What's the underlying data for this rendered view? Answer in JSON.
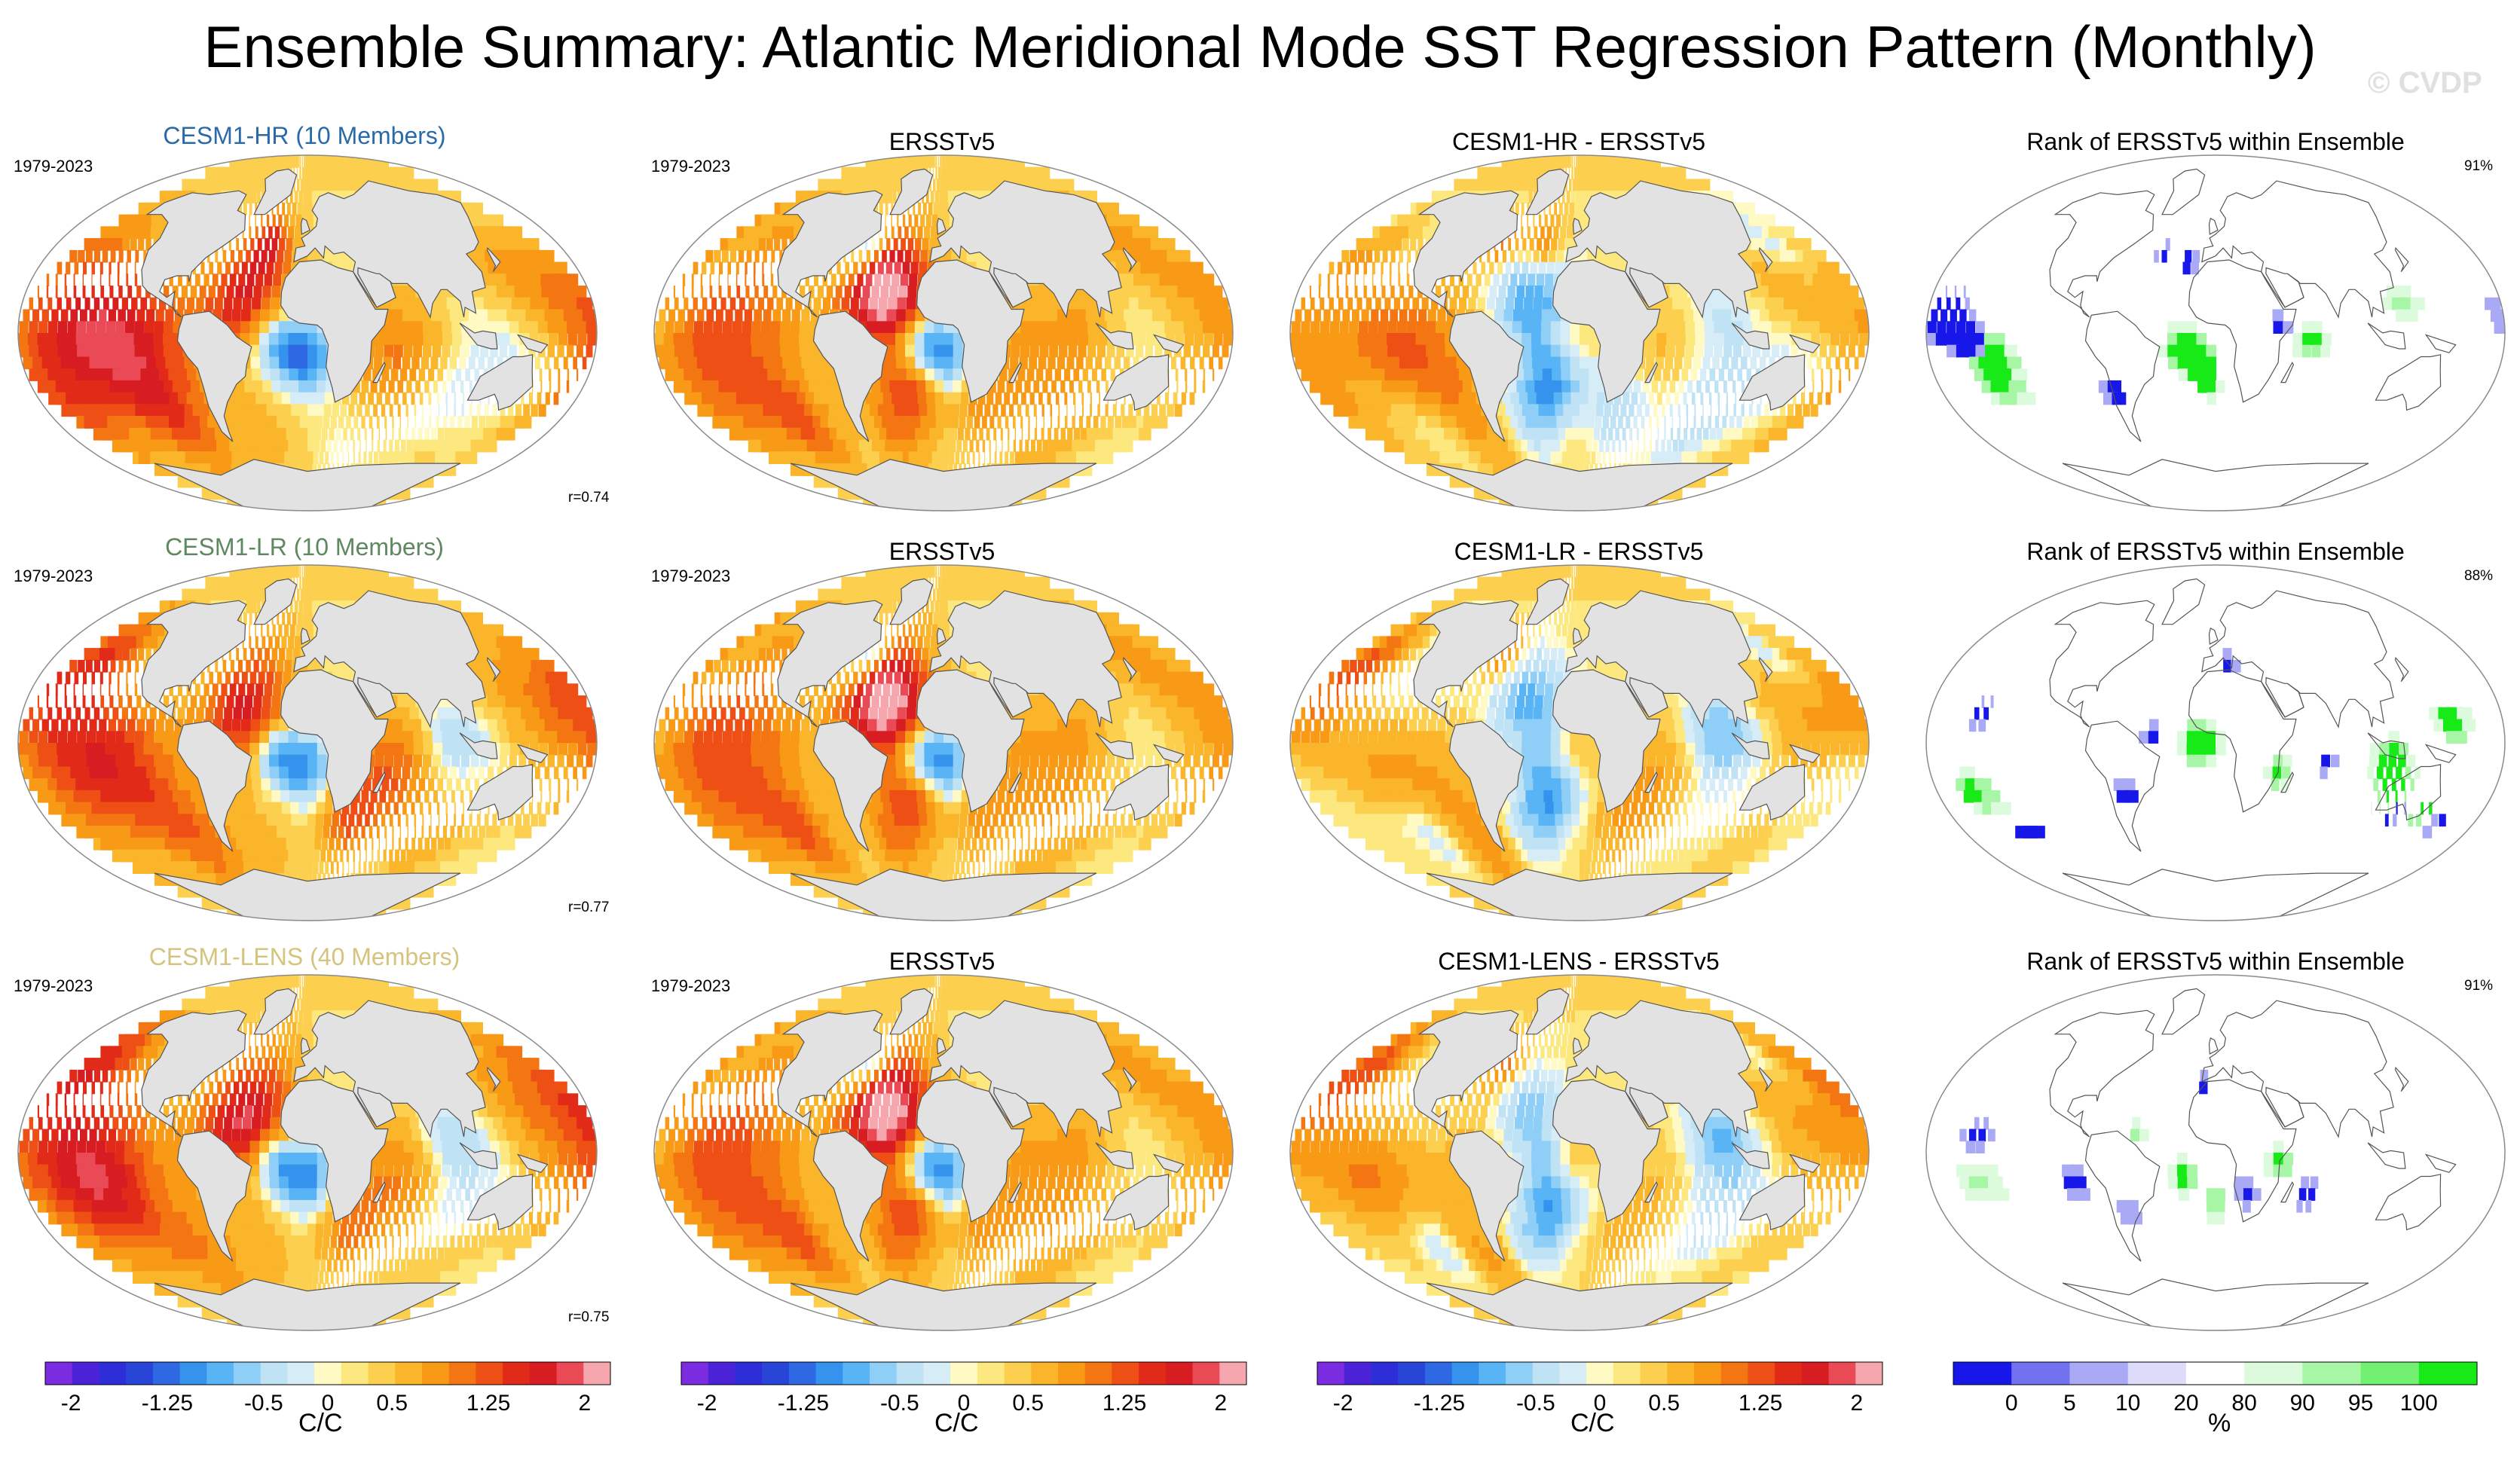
{
  "title": "Ensemble Summary: Atlantic Meridional Mode SST Regression Pattern (Monthly)",
  "watermark": "© CVDP",
  "colors": {
    "land": "#e2e2e2",
    "coast": "#555555",
    "sst_palette": [
      "#7b2be0",
      "#4b22d6",
      "#2e2ed8",
      "#2945d8",
      "#2e69e3",
      "#3593ee",
      "#58b4f5",
      "#8fcff7",
      "#c0e2f5",
      "#d6ecf6",
      "#fff9c4",
      "#fde880",
      "#fccf4e",
      "#fbb52a",
      "#f99a17",
      "#f37612",
      "#ee4f14",
      "#e22a18",
      "#d81d22",
      "#ea4a55",
      "#f6a7ae"
    ],
    "rank_palette": [
      "#1717ea",
      "#7272f0",
      "#a9a9f5",
      "#dcdcfa",
      "#ffffff",
      "#dcfbdc",
      "#a6f6a6",
      "#72f072",
      "#17ea17"
    ]
  },
  "rows": [
    {
      "model_title": "CESM1-HR (10 Members)",
      "model_title_color": "#2a6aa8",
      "period": "1979-2023",
      "obs_title": "ERSSTv5",
      "obs_period": "1979-2023",
      "diff_title": "CESM1-HR - ERSSTv5",
      "rank_title": "Rank of ERSSTv5 within Ensemble",
      "pattern_correlation": "r=0.74",
      "rank_percent": "91%"
    },
    {
      "model_title": "CESM1-LR (10 Members)",
      "model_title_color": "#5f8760",
      "period": "1979-2023",
      "obs_title": "ERSSTv5",
      "obs_period": "1979-2023",
      "diff_title": "CESM1-LR - ERSSTv5",
      "rank_title": "Rank of ERSSTv5 within Ensemble",
      "pattern_correlation": "r=0.77",
      "rank_percent": "88%"
    },
    {
      "model_title": "CESM1-LENS (40 Members)",
      "model_title_color": "#d4c47e",
      "period": "1979-2023",
      "obs_title": "ERSSTv5",
      "obs_period": "1979-2023",
      "diff_title": "CESM1-LENS - ERSSTv5",
      "rank_title": "Rank of ERSSTv5 within Ensemble",
      "pattern_correlation": "r=0.75",
      "rank_percent": "91%"
    }
  ],
  "colorbars": [
    {
      "unit": "C/C",
      "tick_labels": [
        "-2",
        "-1.25",
        "-0.5",
        "0",
        "0.5",
        "1.25",
        "2"
      ],
      "tick_values": [
        -2,
        -1.25,
        -0.5,
        0,
        0.5,
        1.25,
        2
      ],
      "range": [
        -2.2,
        2.2
      ]
    },
    {
      "unit": "C/C",
      "tick_labels": [
        "-2",
        "-1.25",
        "-0.5",
        "0",
        "0.5",
        "1.25",
        "2"
      ],
      "tick_values": [
        -2,
        -1.25,
        -0.5,
        0,
        0.5,
        1.25,
        2
      ],
      "range": [
        -2.2,
        2.2
      ]
    },
    {
      "unit": "C/C",
      "tick_labels": [
        "-2",
        "-1.25",
        "-0.5",
        "0",
        "0.5",
        "1.25",
        "2"
      ],
      "tick_values": [
        -2,
        -1.25,
        -0.5,
        0,
        0.5,
        1.25,
        2
      ],
      "range": [
        -2.2,
        2.2
      ]
    },
    {
      "unit": "%",
      "tick_labels": [
        "0",
        "5",
        "10",
        "20",
        "80",
        "90",
        "95",
        "100"
      ],
      "tick_values": [
        0,
        5,
        10,
        20,
        80,
        90,
        95,
        100
      ]
    }
  ],
  "chart_data": {
    "type": "heatmap",
    "title": "Ensemble Summary: Atlantic Meridional Mode SST Regression Pattern (Monthly)",
    "projection": "Robinson (global)",
    "variable": "SST regression onto AMM index",
    "units": "C/C",
    "color_levels": [
      -2,
      -1.75,
      -1.5,
      -1.25,
      -1,
      -0.75,
      -0.5,
      -0.25,
      -0.1,
      0,
      0.1,
      0.25,
      0.5,
      0.75,
      1,
      1.25,
      1.5,
      1.75,
      2
    ],
    "rank_levels": [
      0,
      5,
      10,
      20,
      80,
      90,
      95,
      100
    ],
    "rank_units": "%",
    "panels": [
      {
        "row": 1,
        "column": "model",
        "label": "CESM1-HR (10 Members)",
        "period": "1979-2023",
        "pattern_correlation": 0.74
      },
      {
        "row": 1,
        "column": "observations",
        "label": "ERSSTv5",
        "period": "1979-2023"
      },
      {
        "row": 1,
        "column": "difference",
        "label": "CESM1-HR - ERSSTv5"
      },
      {
        "row": 1,
        "column": "rank",
        "label": "Rank of ERSSTv5 within Ensemble",
        "percent_within_10_90": 91
      },
      {
        "row": 2,
        "column": "model",
        "label": "CESM1-LR (10 Members)",
        "period": "1979-2023",
        "pattern_correlation": 0.77
      },
      {
        "row": 2,
        "column": "observations",
        "label": "ERSSTv5",
        "period": "1979-2023"
      },
      {
        "row": 2,
        "column": "difference",
        "label": "CESM1-LR - ERSSTv5"
      },
      {
        "row": 2,
        "column": "rank",
        "label": "Rank of ERSSTv5 within Ensemble",
        "percent_within_10_90": 88
      },
      {
        "row": 3,
        "column": "model",
        "label": "CESM1-LENS (40 Members)",
        "period": "1979-2023",
        "pattern_correlation": 0.75
      },
      {
        "row": 3,
        "column": "observations",
        "label": "ERSSTv5",
        "period": "1979-2023"
      },
      {
        "row": 3,
        "column": "difference",
        "label": "CESM1-LENS - ERSSTv5"
      },
      {
        "row": 3,
        "column": "rank",
        "label": "Rank of ERSSTv5 within Ensemble",
        "percent_within_10_90": 91
      }
    ]
  }
}
